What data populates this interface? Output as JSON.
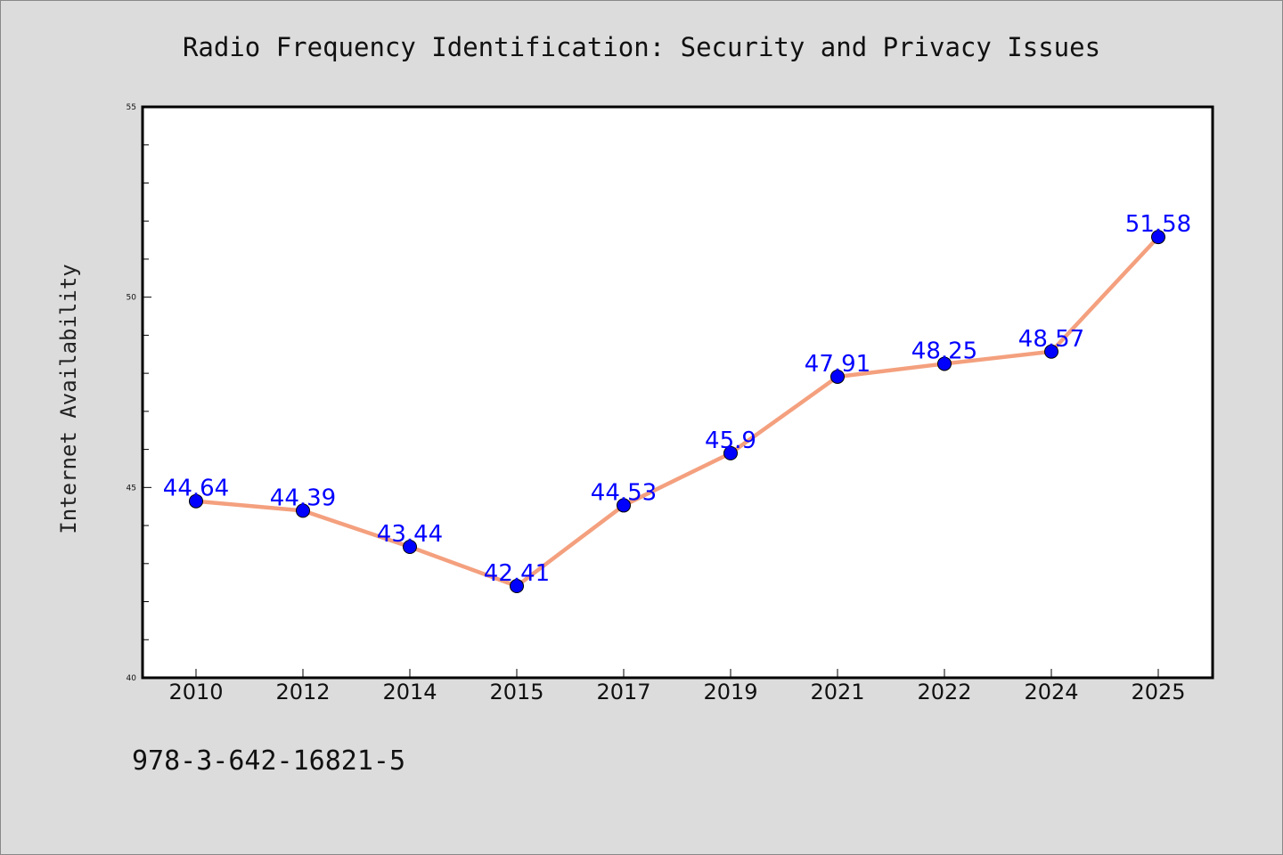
{
  "chart_data": {
    "type": "line",
    "title": "Radio Frequency Identification: Security and Privacy Issues",
    "xlabel": "",
    "ylabel": "Internet Availability",
    "categories": [
      "2010",
      "2012",
      "2014",
      "2015",
      "2017",
      "2019",
      "2021",
      "2022",
      "2024",
      "2025"
    ],
    "series": [
      {
        "values": [
          44.64,
          44.39,
          43.44,
          42.41,
          44.53,
          45.9,
          47.91,
          48.25,
          48.57,
          51.58
        ],
        "data_labels": [
          "44.64",
          "44.39",
          "43.44",
          "42.41",
          "44.53",
          "45.9",
          "47.91",
          "48.25",
          "48.57",
          "51.58"
        ],
        "line_color": "#f4a07e",
        "marker_color": "#0000ff"
      }
    ],
    "ylim": [
      40,
      55
    ],
    "yticks": [
      40,
      45,
      50,
      55
    ],
    "grid": false,
    "legend": "none"
  },
  "footer": {
    "text": "978-3-642-16821-5"
  },
  "colors": {
    "background": "#dcdcdc",
    "plot_background": "#ffffff",
    "data_label": "#0000ff"
  }
}
